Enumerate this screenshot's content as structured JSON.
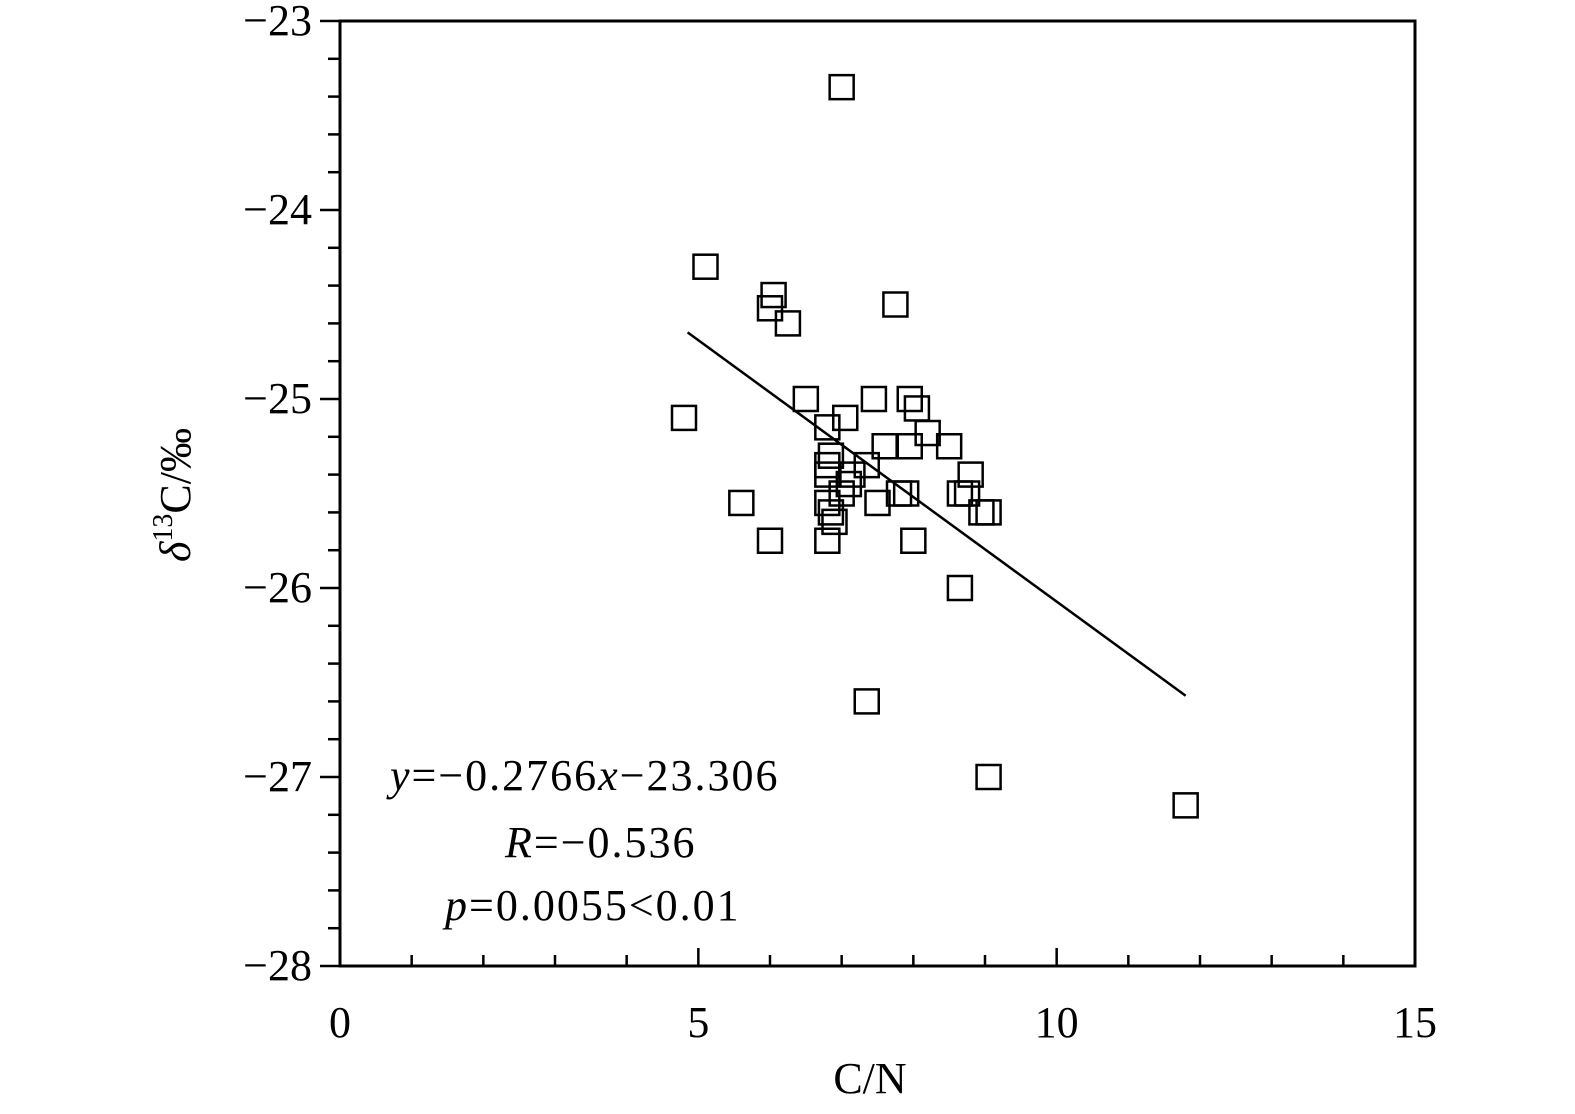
{
  "chart_data": {
    "type": "scatter",
    "title": "",
    "xlabel": "C/N",
    "ylabel": {
      "delta": "δ",
      "sup": "13",
      "rest": "C/‰"
    },
    "xlim": [
      0,
      15
    ],
    "ylim": [
      -28,
      -23
    ],
    "x_ticks": [
      0,
      5,
      10,
      15
    ],
    "x_tick_labels": [
      "0",
      "5",
      "10",
      "15"
    ],
    "x_minor_step": 1,
    "y_ticks": [
      -23,
      -24,
      -25,
      -26,
      -27,
      -28
    ],
    "y_tick_labels": [
      "−23",
      "−24",
      "−25",
      "−26",
      "−27",
      "−28"
    ],
    "y_minor_step": 0.2,
    "grid": false,
    "marker": "open-square",
    "series": [
      {
        "points": [
          [
            7.0,
            -23.35
          ],
          [
            5.1,
            -24.3
          ],
          [
            6.05,
            -24.45
          ],
          [
            6.0,
            -24.52
          ],
          [
            6.25,
            -24.6
          ],
          [
            7.75,
            -24.5
          ],
          [
            4.8,
            -25.1
          ],
          [
            6.5,
            -25.0
          ],
          [
            7.45,
            -25.0
          ],
          [
            7.95,
            -25.0
          ],
          [
            8.05,
            -25.05
          ],
          [
            6.8,
            -25.15
          ],
          [
            7.05,
            -25.1
          ],
          [
            8.2,
            -25.18
          ],
          [
            7.6,
            -25.25
          ],
          [
            7.95,
            -25.25
          ],
          [
            8.5,
            -25.25
          ],
          [
            6.85,
            -25.3
          ],
          [
            6.8,
            -25.35
          ],
          [
            6.8,
            -25.4
          ],
          [
            7.35,
            -25.35
          ],
          [
            7.15,
            -25.4
          ],
          [
            7.1,
            -25.45
          ],
          [
            8.8,
            -25.4
          ],
          [
            7.0,
            -25.5
          ],
          [
            7.8,
            -25.5
          ],
          [
            7.9,
            -25.5
          ],
          [
            8.65,
            -25.5
          ],
          [
            8.75,
            -25.5
          ],
          [
            5.6,
            -25.55
          ],
          [
            6.8,
            -25.55
          ],
          [
            7.5,
            -25.55
          ],
          [
            6.85,
            -25.6
          ],
          [
            8.95,
            -25.6
          ],
          [
            9.05,
            -25.6
          ],
          [
            6.9,
            -25.65
          ],
          [
            6.0,
            -25.75
          ],
          [
            6.8,
            -25.75
          ],
          [
            8.0,
            -25.75
          ],
          [
            8.65,
            -26.0
          ],
          [
            7.35,
            -26.6
          ],
          [
            9.05,
            -27.0
          ],
          [
            11.8,
            -27.15
          ]
        ]
      }
    ],
    "regression": {
      "slope": -0.2766,
      "intercept": -23.306,
      "x_range": [
        4.85,
        11.8
      ]
    },
    "annotations": [
      {
        "italic": "y",
        "text": "=−0.2766",
        "italic2": "x",
        "text2": "−23.306"
      },
      {
        "italic": "R",
        "text": "=−0.536"
      },
      {
        "italic": "p",
        "text": "=0.0055<0.01"
      }
    ]
  }
}
